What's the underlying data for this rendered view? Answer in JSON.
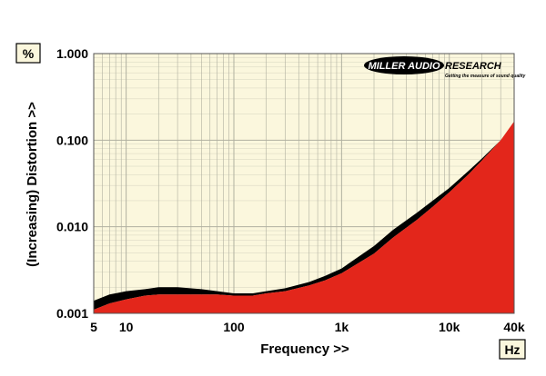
{
  "chart_data": {
    "type": "area",
    "title": "",
    "xlabel": "Frequency >>",
    "ylabel": "(Increasing) Distortion >>",
    "x_unit": "Hz",
    "y_unit": "%",
    "xscale": "log",
    "yscale": "log",
    "xlim": [
      5,
      40000
    ],
    "ylim": [
      0.001,
      1.0
    ],
    "grid": true,
    "x_ticks": [
      {
        "value": 5,
        "label": "5"
      },
      {
        "value": 10,
        "label": "10"
      },
      {
        "value": 100,
        "label": "100"
      },
      {
        "value": 1000,
        "label": "1k"
      },
      {
        "value": 10000,
        "label": "10k"
      },
      {
        "value": 40000,
        "label": "40k"
      }
    ],
    "y_ticks": [
      {
        "value": 0.001,
        "label": "0.001"
      },
      {
        "value": 0.01,
        "label": "0.010"
      },
      {
        "value": 0.1,
        "label": "0.100"
      },
      {
        "value": 1.0,
        "label": "1.000"
      }
    ],
    "series": [
      {
        "color": "#e3261b",
        "x": [
          5,
          7,
          10,
          15,
          20,
          30,
          50,
          70,
          100,
          150,
          200,
          300,
          500,
          700,
          1000,
          2000,
          3000,
          5000,
          7000,
          10000,
          15000,
          20000,
          30000,
          40000
        ],
        "y": [
          0.0011,
          0.0013,
          0.00145,
          0.0016,
          0.00165,
          0.00165,
          0.00165,
          0.00165,
          0.0016,
          0.0016,
          0.0017,
          0.0018,
          0.0021,
          0.0024,
          0.0029,
          0.0049,
          0.0075,
          0.012,
          0.017,
          0.025,
          0.04,
          0.058,
          0.1,
          0.165
        ]
      },
      {
        "color": "#000000",
        "x": [
          5,
          7,
          10,
          15,
          20,
          30,
          50,
          70,
          100,
          150,
          200,
          300,
          500,
          700,
          1000,
          2000,
          3000,
          5000,
          7000,
          10000,
          15000,
          20000,
          30000
        ],
        "y": [
          0.0014,
          0.00165,
          0.0018,
          0.0019,
          0.002,
          0.002,
          0.0019,
          0.0018,
          0.0017,
          0.0017,
          0.0018,
          0.00195,
          0.0023,
          0.0027,
          0.0033,
          0.006,
          0.0092,
          0.0145,
          0.02,
          0.028,
          0.044,
          0.061,
          0.1
        ]
      }
    ],
    "logo": {
      "text_left": "MILLER AUDIO",
      "text_right": "RESEARCH",
      "tagline": "Getting the measure of sound quality"
    },
    "colors": {
      "plot_background": "#fbf7dd",
      "grid_line": "#b0b0a0",
      "fill": "#e3261b",
      "band": "#000000",
      "unit_box_fill": "#fbf7dd"
    }
  }
}
